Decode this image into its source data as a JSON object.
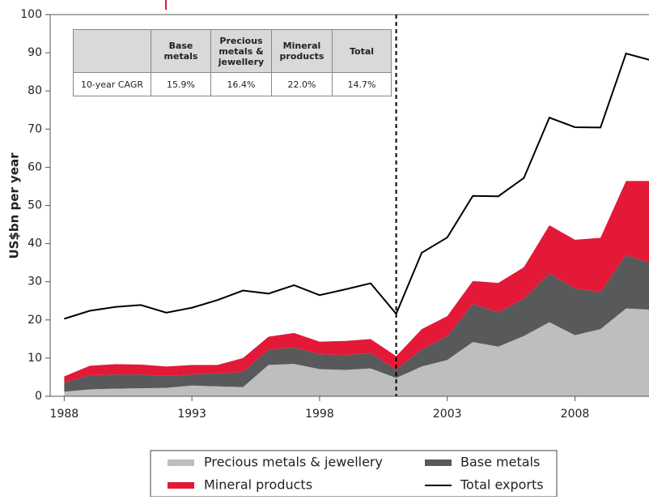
{
  "chart_data": {
    "type": "area",
    "y_label": "US$bn per year",
    "x": [
      1988,
      1989,
      1990,
      1991,
      1992,
      1993,
      1994,
      1995,
      1996,
      1997,
      1998,
      1999,
      2000,
      2001,
      2002,
      2003,
      2004,
      2005,
      2006,
      2007,
      2008,
      2009,
      2010,
      2011
    ],
    "series": [
      {
        "name": "Precious metals & jewellery",
        "color": "#bcbec0",
        "style": "area",
        "values": [
          1.2,
          1.8,
          2.0,
          2.1,
          2.2,
          2.8,
          2.6,
          2.4,
          8.2,
          8.5,
          7.1,
          6.9,
          7.3,
          4.8,
          7.8,
          9.5,
          14.2,
          13.0,
          15.8,
          19.4,
          16.0,
          17.6,
          23.0,
          22.7
        ]
      },
      {
        "name": "Base metals",
        "color": "#58595b",
        "style": "area",
        "values": [
          2.4,
          3.7,
          3.7,
          3.6,
          3.1,
          2.9,
          3.4,
          4.0,
          4.0,
          4.3,
          3.9,
          3.9,
          4.0,
          2.2,
          4.5,
          6.3,
          10.0,
          9.0,
          9.8,
          12.8,
          12.2,
          9.7,
          14.0,
          12.1
        ]
      },
      {
        "name": "Mineral products",
        "color": "#e31937",
        "style": "area",
        "values": [
          1.6,
          2.5,
          2.7,
          2.6,
          2.5,
          2.5,
          2.2,
          3.6,
          3.4,
          3.8,
          3.3,
          3.7,
          3.7,
          3.5,
          5.3,
          5.2,
          6.0,
          7.7,
          8.2,
          12.6,
          12.8,
          14.2,
          19.4,
          21.6
        ]
      },
      {
        "name": "Total exports",
        "color": "#000000",
        "style": "line",
        "values": [
          20.3,
          22.4,
          23.4,
          23.9,
          21.9,
          23.2,
          25.2,
          27.7,
          26.9,
          29.1,
          26.5,
          28.0,
          29.6,
          21.6,
          37.6,
          41.6,
          52.5,
          52.4,
          57.2,
          73.0,
          70.5,
          70.4,
          89.8,
          88.0
        ]
      }
    ],
    "xlim": [
      1987.45,
      2010.9
    ],
    "ylim": [
      0,
      100
    ],
    "xticks": [
      1988,
      1993,
      1998,
      2003,
      2008
    ],
    "yticks": [
      0,
      10,
      20,
      30,
      40,
      50,
      60,
      70,
      80,
      90,
      100
    ],
    "divider_x": 2001,
    "table": {
      "header": [
        "",
        "Base metals",
        "Precious metals & jewellery",
        "Mineral products",
        "Total"
      ],
      "rows": [
        [
          "10-year CAGR",
          "15.9%",
          "16.4%",
          "22.0%",
          "14.7%"
        ]
      ]
    }
  }
}
